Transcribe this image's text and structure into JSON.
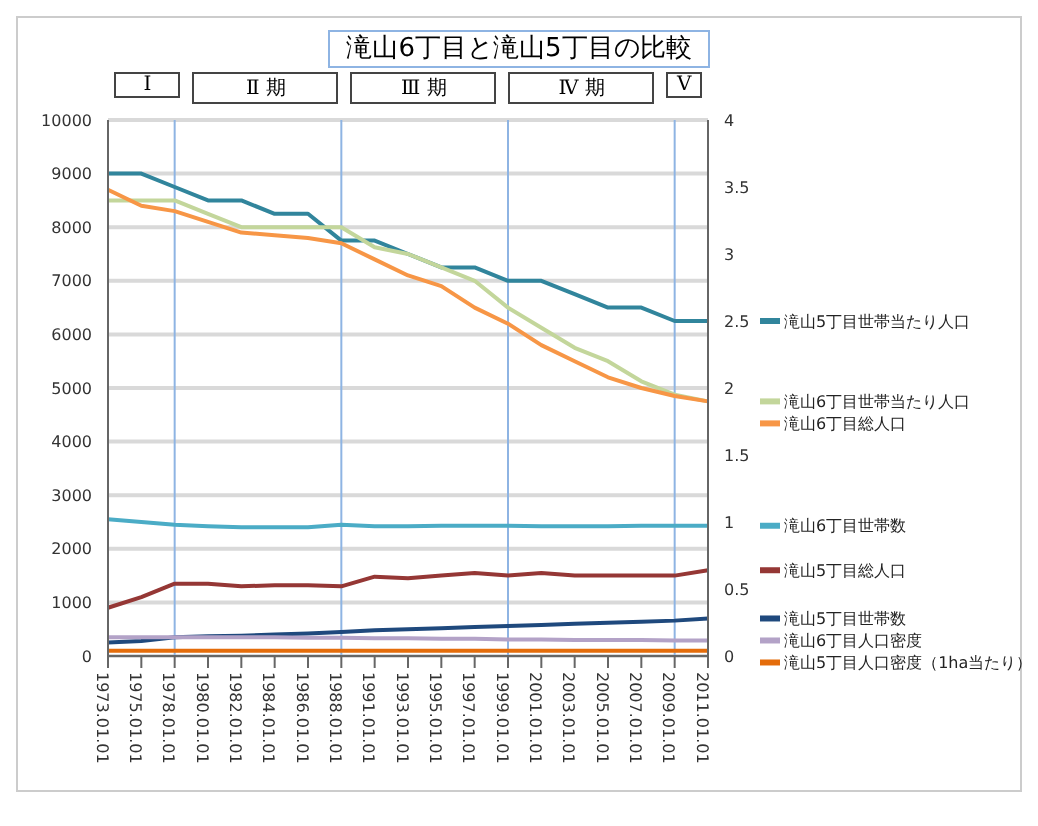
{
  "chart_data": {
    "type": "line",
    "title": "滝山6丁目と滝山5丁目の比較",
    "categories": [
      "1973.01.01",
      "1975.01.01",
      "1978.01.01",
      "1980.01.01",
      "1982.01.01",
      "1984.01.01",
      "1986.01.01",
      "1988.01.01",
      "1991.01.01",
      "1993.01.01",
      "1995.01.01",
      "1997.01.01",
      "1999.01.01",
      "2001.01.01",
      "2003.01.01",
      "2005.01.01",
      "2007.01.01",
      "2009.01.01",
      "2011.01.01"
    ],
    "series": [
      {
        "name": "滝山5丁目世帯当たり人口",
        "color": "#31859c",
        "axis": "y2",
        "values": [
          3.6,
          3.6,
          3.5,
          3.4,
          3.4,
          3.3,
          3.3,
          3.1,
          3.1,
          3.0,
          2.9,
          2.9,
          2.8,
          2.8,
          2.7,
          2.6,
          2.6,
          2.5,
          2.5
        ]
      },
      {
        "name": "滝山6丁目世帯当たり人口",
        "color": "#c3d69b",
        "axis": "y2",
        "values": [
          3.4,
          3.4,
          3.4,
          3.3,
          3.2,
          3.2,
          3.2,
          3.2,
          3.05,
          3.0,
          2.9,
          2.8,
          2.6,
          2.45,
          2.3,
          2.2,
          2.05,
          1.95,
          1.9
        ]
      },
      {
        "name": "滝山6丁目総人口",
        "color": "#f79646",
        "values": [
          8700,
          8400,
          8300,
          8100,
          7900,
          7850,
          7800,
          7700,
          7400,
          7100,
          6900,
          6500,
          6200,
          5800,
          5500,
          5200,
          5000,
          4850,
          4750
        ]
      },
      {
        "name": "滝山6丁目世帯数",
        "color": "#4bacc6",
        "values": [
          2550,
          2500,
          2450,
          2420,
          2400,
          2400,
          2400,
          2450,
          2420,
          2420,
          2430,
          2430,
          2430,
          2420,
          2420,
          2420,
          2430,
          2430,
          2430
        ]
      },
      {
        "name": "滝山5丁目総人口",
        "color": "#953735",
        "values": [
          900,
          1100,
          1350,
          1350,
          1300,
          1320,
          1320,
          1300,
          1480,
          1450,
          1500,
          1550,
          1500,
          1550,
          1500,
          1500,
          1500,
          1500,
          1600
        ]
      },
      {
        "name": "滝山5丁目世帯数",
        "color": "#1f497d",
        "values": [
          250,
          280,
          350,
          370,
          380,
          400,
          420,
          450,
          480,
          500,
          520,
          540,
          560,
          580,
          600,
          620,
          640,
          660,
          700
        ]
      },
      {
        "name": "滝山6丁目人口密度",
        "color": "#b3a2c7",
        "values": [
          350,
          350,
          350,
          350,
          350,
          350,
          340,
          340,
          330,
          330,
          320,
          320,
          310,
          310,
          300,
          300,
          300,
          290,
          290
        ]
      },
      {
        "name": "滝山5丁目人口密度（1ha当たり）",
        "color": "#e46c0a",
        "values": [
          100,
          100,
          100,
          100,
          100,
          100,
          100,
          100,
          100,
          100,
          100,
          100,
          100,
          100,
          100,
          100,
          100,
          100,
          100
        ]
      }
    ],
    "ylim": [
      0,
      10000
    ],
    "yticks": [
      0,
      1000,
      2000,
      3000,
      4000,
      5000,
      6000,
      7000,
      8000,
      9000,
      10000
    ],
    "y2lim": [
      0,
      4
    ],
    "y2ticks": [
      0,
      0.5,
      1,
      1.5,
      2,
      2.5,
      3,
      3.5,
      4
    ],
    "grid": "y",
    "marker": "none",
    "legend": "right",
    "ref_lines": [
      {
        "axis": "x",
        "value": "1978.01.01",
        "color": "#8eb4e3"
      },
      {
        "axis": "x",
        "value": "1988.01.01",
        "color": "#8eb4e3"
      },
      {
        "axis": "x",
        "value": "1999.01.01",
        "color": "#8eb4e3"
      },
      {
        "axis": "x",
        "value": "2009.01.01",
        "color": "#8eb4e3"
      }
    ],
    "annotations": [
      "Ⅰ",
      "Ⅱ 期",
      "Ⅲ 期",
      "Ⅳ 期",
      "Ⅴ"
    ]
  }
}
